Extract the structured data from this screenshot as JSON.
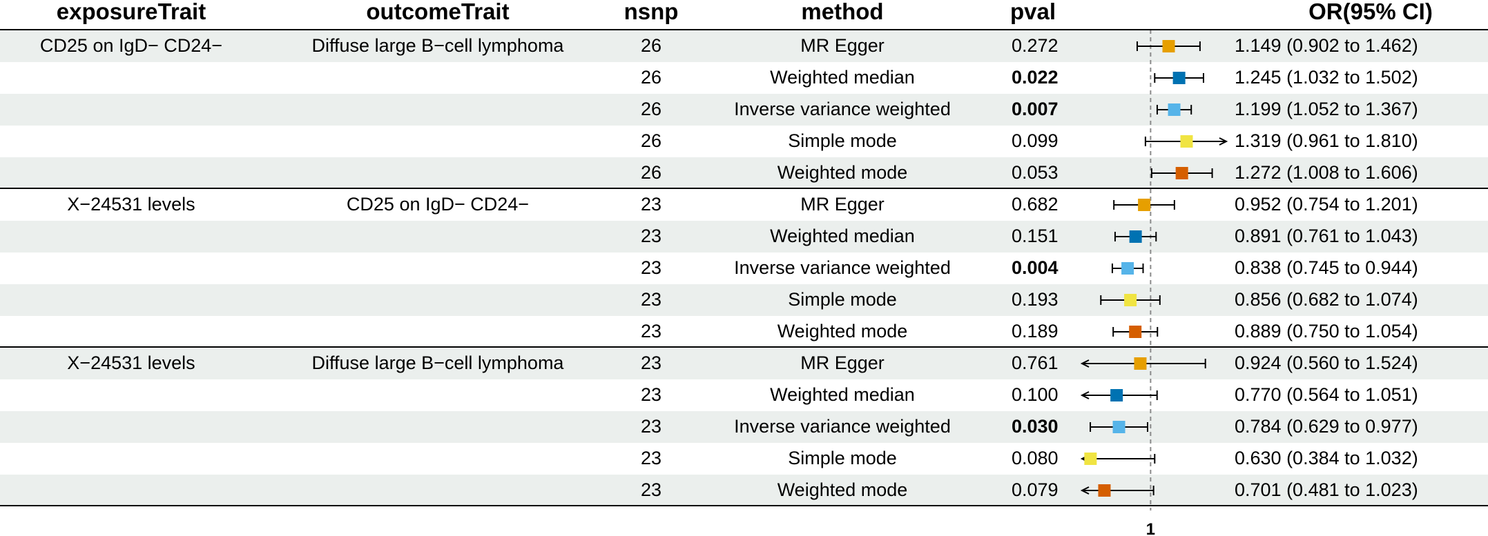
{
  "chart_data": {
    "type": "forest",
    "columns": [
      "exposureTrait",
      "outcomeTrait",
      "nsnp",
      "method",
      "pval",
      "OR(95% CI)"
    ],
    "reference_line": 1,
    "x_tick_labels": [
      "1"
    ],
    "arrow_note": "arrows indicate confidence interval truncated at plot edge",
    "series_colors": {
      "MR Egger": "#E69F00",
      "Weighted median": "#0072B2",
      "Inverse variance weighted": "#56B4E9",
      "Simple mode": "#F0E442",
      "Weighted mode": "#D55E00"
    },
    "rows": [
      {
        "exposure": "CD25 on IgD− CD24−",
        "outcome": "Diffuse large B−cell lymphoma",
        "nsnp": "26",
        "method": "MR Egger",
        "pval": "0.272",
        "bold": false,
        "or": 1.149,
        "lo": 0.902,
        "hi": 1.462,
        "or_text": "1.149 (0.902 to 1.462)"
      },
      {
        "exposure": "",
        "outcome": "",
        "nsnp": "26",
        "method": "Weighted median",
        "pval": "0.022",
        "bold": true,
        "or": 1.245,
        "lo": 1.032,
        "hi": 1.502,
        "or_text": "1.245 (1.032 to 1.502)"
      },
      {
        "exposure": "",
        "outcome": "",
        "nsnp": "26",
        "method": "Inverse variance weighted",
        "pval": "0.007",
        "bold": true,
        "or": 1.199,
        "lo": 1.052,
        "hi": 1.367,
        "or_text": "1.199 (1.052 to 1.367)"
      },
      {
        "exposure": "",
        "outcome": "",
        "nsnp": "26",
        "method": "Simple mode",
        "pval": "0.099",
        "bold": false,
        "or": 1.319,
        "lo": 0.961,
        "hi": 1.81,
        "or_text": "1.319 (0.961 to 1.810)"
      },
      {
        "exposure": "",
        "outcome": "",
        "nsnp": "26",
        "method": "Weighted mode",
        "pval": "0.053",
        "bold": false,
        "or": 1.272,
        "lo": 1.008,
        "hi": 1.606,
        "or_text": "1.272 (1.008 to 1.606)"
      },
      {
        "exposure": "X−24531 levels",
        "outcome": "CD25 on IgD− CD24−",
        "nsnp": "23",
        "method": "MR Egger",
        "pval": "0.682",
        "bold": false,
        "or": 0.952,
        "lo": 0.754,
        "hi": 1.201,
        "or_text": "0.952 (0.754 to 1.201)"
      },
      {
        "exposure": "",
        "outcome": "",
        "nsnp": "23",
        "method": "Weighted median",
        "pval": "0.151",
        "bold": false,
        "or": 0.891,
        "lo": 0.761,
        "hi": 1.043,
        "or_text": "0.891 (0.761 to 1.043)"
      },
      {
        "exposure": "",
        "outcome": "",
        "nsnp": "23",
        "method": "Inverse variance weighted",
        "pval": "0.004",
        "bold": true,
        "or": 0.838,
        "lo": 0.745,
        "hi": 0.944,
        "or_text": "0.838 (0.745 to 0.944)"
      },
      {
        "exposure": "",
        "outcome": "",
        "nsnp": "23",
        "method": "Simple mode",
        "pval": "0.193",
        "bold": false,
        "or": 0.856,
        "lo": 0.682,
        "hi": 1.074,
        "or_text": "0.856 (0.682 to 1.074)"
      },
      {
        "exposure": "",
        "outcome": "",
        "nsnp": "23",
        "method": "Weighted mode",
        "pval": "0.189",
        "bold": false,
        "or": 0.889,
        "lo": 0.75,
        "hi": 1.054,
        "or_text": "0.889 (0.750 to 1.054)"
      },
      {
        "exposure": "X−24531 levels",
        "outcome": "Diffuse large B−cell lymphoma",
        "nsnp": "23",
        "method": "MR Egger",
        "pval": "0.761",
        "bold": false,
        "or": 0.924,
        "lo": 0.56,
        "hi": 1.524,
        "or_text": "0.924 (0.560 to 1.524)"
      },
      {
        "exposure": "",
        "outcome": "",
        "nsnp": "23",
        "method": "Weighted median",
        "pval": "0.100",
        "bold": false,
        "or": 0.77,
        "lo": 0.564,
        "hi": 1.051,
        "or_text": "0.770 (0.564 to 1.051)"
      },
      {
        "exposure": "",
        "outcome": "",
        "nsnp": "23",
        "method": "Inverse variance weighted",
        "pval": "0.030",
        "bold": true,
        "or": 0.784,
        "lo": 0.629,
        "hi": 0.977,
        "or_text": "0.784 (0.629 to 0.977)"
      },
      {
        "exposure": "",
        "outcome": "",
        "nsnp": "23",
        "method": "Simple mode",
        "pval": "0.080",
        "bold": false,
        "or": 0.63,
        "lo": 0.384,
        "hi": 1.032,
        "or_text": "0.630 (0.384 to 1.032)"
      },
      {
        "exposure": "",
        "outcome": "",
        "nsnp": "23",
        "method": "Weighted mode",
        "pval": "0.079",
        "bold": false,
        "or": 0.701,
        "lo": 0.481,
        "hi": 1.023,
        "or_text": "0.701 (0.481 to 1.023)"
      }
    ]
  }
}
